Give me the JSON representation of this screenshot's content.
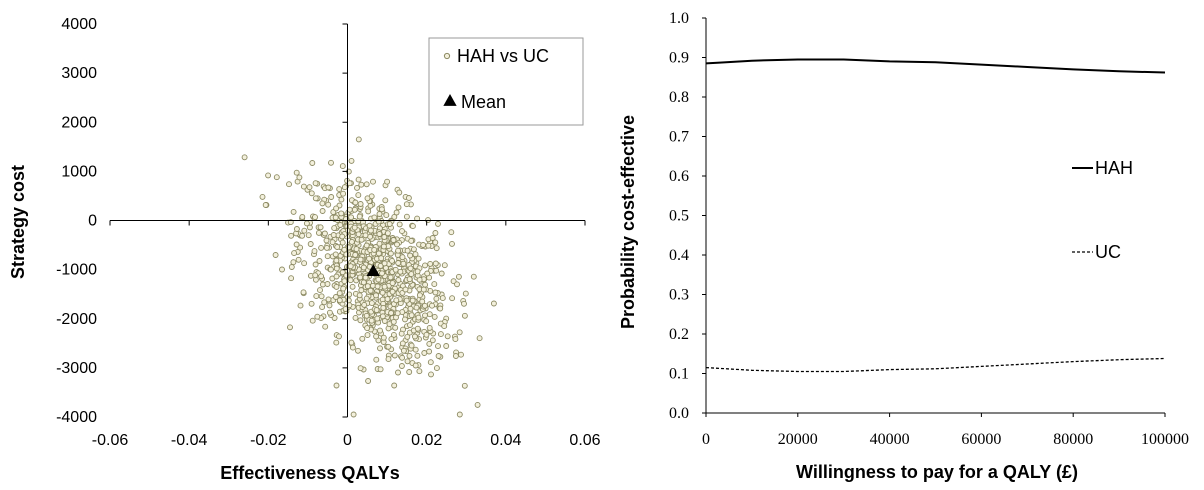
{
  "chart_data": [
    {
      "type": "scatter",
      "title": "",
      "xlabel": "Effectiveness QALYs",
      "ylabel": "Strategy cost",
      "xlim": [
        -0.06,
        0.06
      ],
      "ylim": [
        -4000,
        4000
      ],
      "xticks": [
        -0.06,
        -0.04,
        -0.02,
        0,
        0.02,
        0.04,
        0.06
      ],
      "xtick_labels": [
        "-0.06",
        "-0.04",
        "-0.02",
        "0",
        "0.02",
        "0.04",
        "0.06"
      ],
      "yticks": [
        -4000,
        -3000,
        -2000,
        -1000,
        0,
        1000,
        2000,
        3000,
        4000
      ],
      "ytick_labels": [
        "-4000",
        "-3000",
        "-2000",
        "-1000",
        "0",
        "1000",
        "2000",
        "3000",
        "4000"
      ],
      "legend_position": "top-right",
      "series": [
        {
          "name": "HAH vs UC",
          "marker": "open-circle",
          "color": "#8c8a63",
          "fill": "#f3f0dc",
          "distribution": {
            "center": [
              0.007,
              -1050
            ],
            "std_x": 0.0095,
            "std_y": 900,
            "correlation": -0.45,
            "count": 1000,
            "x_range": [
              -0.026,
              0.042
            ],
            "y_range": [
              -3950,
              1650
            ]
          }
        },
        {
          "name": "Mean",
          "marker": "filled-triangle",
          "color": "#000000",
          "x": [
            0.0065
          ],
          "y": [
            -1030
          ]
        }
      ]
    },
    {
      "type": "line",
      "title": "",
      "xlabel": "Willingness to pay for a QALY (£)",
      "ylabel": "Probability cost-effective",
      "xlim": [
        0,
        100000
      ],
      "ylim": [
        0,
        1
      ],
      "xticks": [
        0,
        20000,
        40000,
        60000,
        80000,
        100000
      ],
      "xtick_labels": [
        "0",
        "20000",
        "40000",
        "60000",
        "80000",
        "100000"
      ],
      "yticks": [
        0,
        0.1,
        0.2,
        0.3,
        0.4,
        0.5,
        0.6,
        0.7,
        0.8,
        0.9,
        1.0
      ],
      "ytick_labels": [
        "0.0",
        "0.1",
        "0.2",
        "0.3",
        "0.4",
        "0.5",
        "0.6",
        "0.7",
        "0.8",
        "0.9",
        "1.0"
      ],
      "legend_position": "right",
      "x": [
        0,
        3000,
        10000,
        20000,
        30000,
        40000,
        50000,
        60000,
        70000,
        80000,
        90000,
        100000
      ],
      "series": [
        {
          "name": "HAH",
          "style": "solid",
          "color": "#000000",
          "values": [
            0.885,
            0.887,
            0.892,
            0.895,
            0.895,
            0.89,
            0.888,
            0.882,
            0.876,
            0.87,
            0.865,
            0.862
          ]
        },
        {
          "name": "UC",
          "style": "dashed",
          "color": "#000000",
          "values": [
            0.115,
            0.113,
            0.108,
            0.105,
            0.105,
            0.11,
            0.112,
            0.118,
            0.124,
            0.13,
            0.135,
            0.138
          ]
        }
      ]
    }
  ]
}
